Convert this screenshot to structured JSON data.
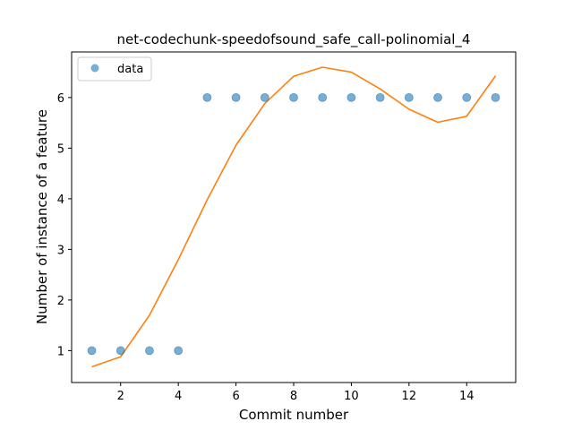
{
  "chart_data": {
    "type": "scatter",
    "title": "net-codechunk-speedofsound_safe_call-polinomial_4",
    "xlabel": "Commit number",
    "ylabel": "Number of instance of a feature",
    "xlim": [
      0.3,
      15.7
    ],
    "ylim": [
      0.37,
      6.9
    ],
    "x_ticks": [
      2,
      4,
      6,
      8,
      10,
      12,
      14
    ],
    "y_ticks": [
      1,
      2,
      3,
      4,
      5,
      6
    ],
    "legend": {
      "position": "top-left",
      "entries": [
        "data"
      ]
    },
    "colors": {
      "data": "#1f77b4",
      "fit": "#ff7f0e"
    },
    "series": [
      {
        "name": "data",
        "kind": "points",
        "x": [
          1,
          2,
          3,
          4,
          5,
          6,
          7,
          8,
          9,
          10,
          11,
          12,
          13,
          14,
          15
        ],
        "y": [
          1,
          1,
          1,
          1,
          6,
          6,
          6,
          6,
          6,
          6,
          6,
          6,
          6,
          6,
          6
        ]
      },
      {
        "kind": "line",
        "x": [
          1,
          2,
          3,
          4,
          5,
          6,
          7,
          8,
          9,
          10,
          11,
          12,
          13,
          14,
          15
        ],
        "y": [
          0.68,
          0.88,
          1.7,
          2.8,
          3.98,
          5.06,
          5.88,
          6.42,
          6.6,
          6.5,
          6.17,
          5.77,
          5.51,
          5.63,
          6.43
        ]
      }
    ]
  }
}
